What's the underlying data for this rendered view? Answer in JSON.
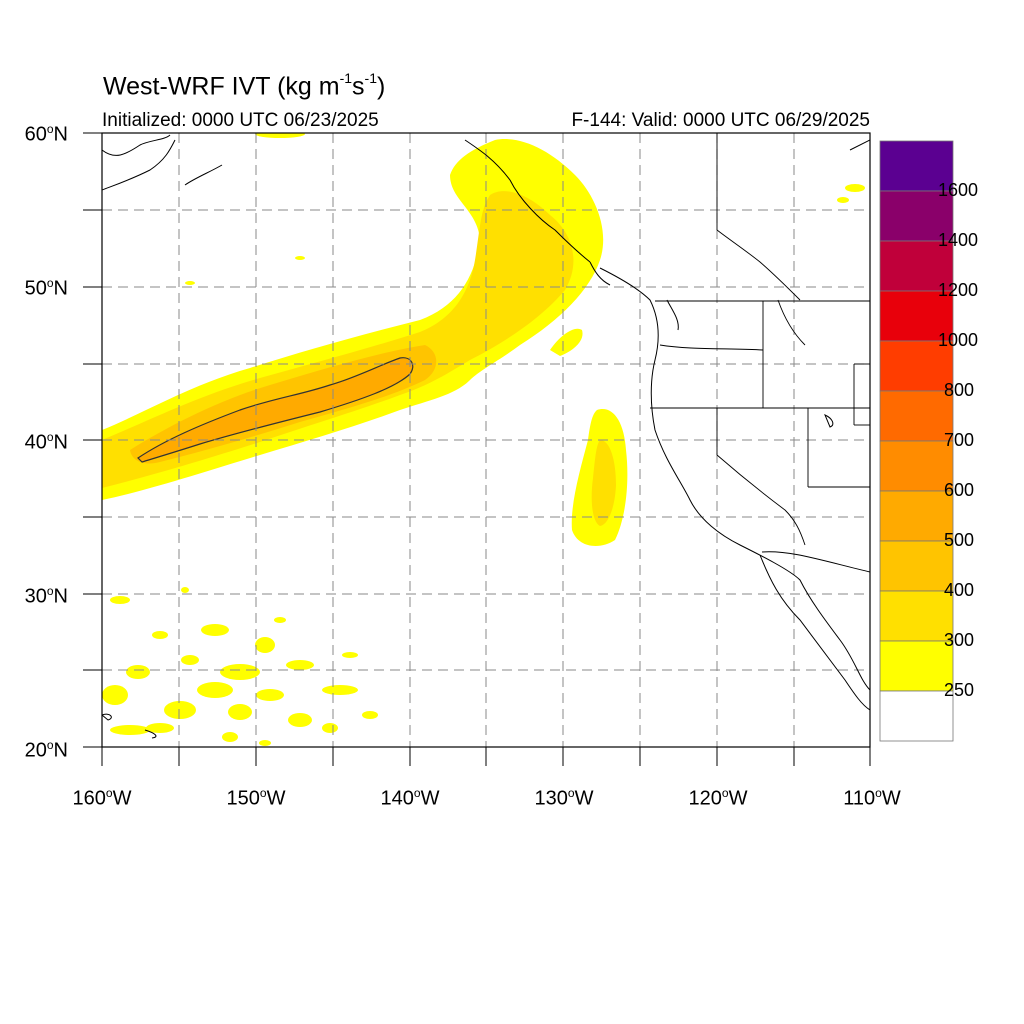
{
  "title": {
    "main": "West-WRF IVT (kg m",
    "exp1": "-1",
    "mid": "s",
    "exp2": "-1",
    "tail": ")"
  },
  "subtitle_left": "Initialized: 0000 UTC 06/23/2025",
  "subtitle_right": "F-144: Valid: 0000 UTC 06/29/2025",
  "lat_labels": [
    {
      "deg": "60",
      "hem": "N"
    },
    {
      "deg": "50",
      "hem": "N"
    },
    {
      "deg": "40",
      "hem": "N"
    },
    {
      "deg": "30",
      "hem": "N"
    },
    {
      "deg": "20",
      "hem": "N"
    }
  ],
  "lon_labels": [
    {
      "deg": "160",
      "hem": "W"
    },
    {
      "deg": "150",
      "hem": "W"
    },
    {
      "deg": "140",
      "hem": "W"
    },
    {
      "deg": "130",
      "hem": "W"
    },
    {
      "deg": "120",
      "hem": "W"
    },
    {
      "deg": "110",
      "hem": "W"
    }
  ],
  "colorbar": {
    "labels": [
      "1600",
      "1400",
      "1200",
      "1000",
      "800",
      "700",
      "600",
      "500",
      "400",
      "300",
      "250"
    ],
    "colors": [
      "#5b0091",
      "#8a006a",
      "#c0003a",
      "#e8000b",
      "#ff3d00",
      "#ff6a00",
      "#ff8c00",
      "#ffaa00",
      "#ffc400",
      "#ffe000",
      "#ffff00",
      "#ffffff"
    ]
  },
  "fill_colors": {
    "ivt_250": "#ffff00",
    "ivt_300": "#ffe000",
    "ivt_400": "#ffc400",
    "ivt_500": "#ffaa00"
  }
}
